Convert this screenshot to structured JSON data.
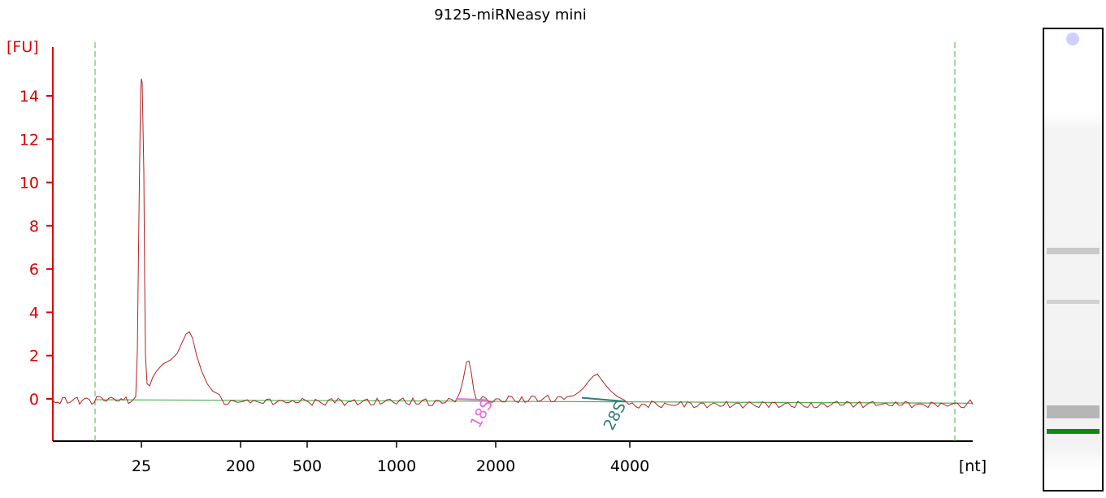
{
  "chart_data": {
    "type": "line",
    "title": "9125-miRNeasy mini",
    "ylabel": "[FU]",
    "xlabel": "[nt]",
    "ylim": [
      -1.8,
      16
    ],
    "yticks": [
      0,
      2,
      4,
      6,
      8,
      10,
      12,
      14
    ],
    "x_axis_scale": "sizing ladder (non-linear)",
    "x_ticks": [
      "25",
      "200",
      "500",
      "1000",
      "2000",
      "4000"
    ],
    "colors": {
      "trace": "#b22222",
      "axis_y": "#dd0000",
      "baseline": "#4caf50",
      "markers": "#4caf50",
      "peak_18S": "#ee66dd",
      "peak_28S": "#2e7b78",
      "gel_band": "#118811"
    },
    "series": [
      {
        "values": [
          {
            "x": "20",
            "y": 0.0
          },
          {
            "x": "25",
            "y": 14.8
          },
          {
            "x": "27",
            "y": 0.6
          },
          {
            "x": "60",
            "y": 1.8
          },
          {
            "x": "90",
            "y": 3.1
          },
          {
            "x": "150",
            "y": 0.5
          },
          {
            "x": "200",
            "y": 0.0
          },
          {
            "x": "1700",
            "y": 0.0
          },
          {
            "x": "1750",
            "y": 1.8
          },
          {
            "x": "1800",
            "y": 0.0
          },
          {
            "x": "3400",
            "y": 0.2
          },
          {
            "x": "3600",
            "y": 1.15
          },
          {
            "x": "4000",
            "y": -0.1
          },
          {
            "x": "[nt]",
            "y": -0.2
          }
        ]
      }
    ],
    "peaks": [
      {
        "label": "18S",
        "color": "#ee66dd"
      },
      {
        "label": "28S",
        "color": "#2e7b78"
      }
    ],
    "gel_lane": {
      "bands": [
        "top",
        "faint-upper",
        "faint-middle",
        "lower",
        "marker-green"
      ]
    }
  }
}
